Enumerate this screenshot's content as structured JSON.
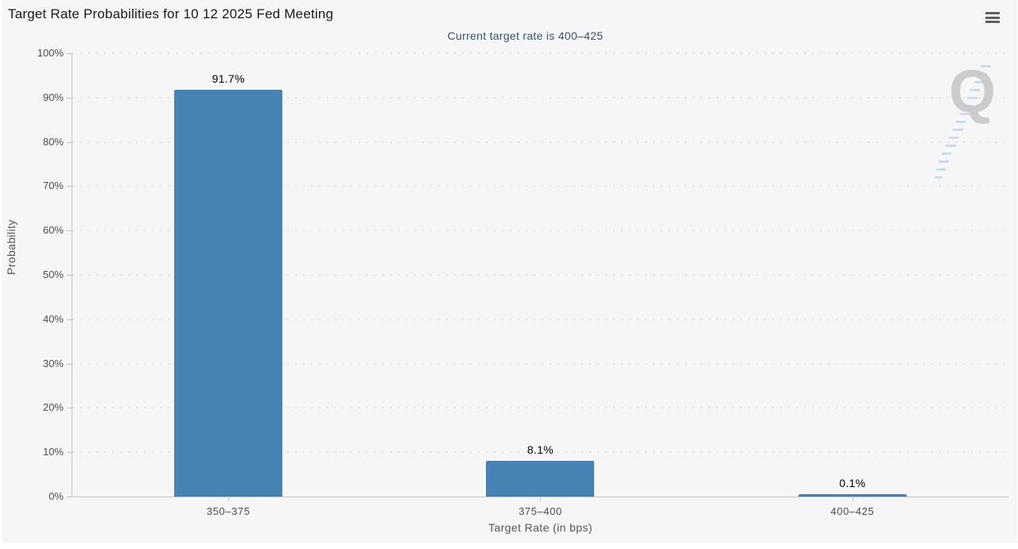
{
  "chart_data": {
    "type": "bar",
    "title": "Target Rate Probabilities for 10 12 2025 Fed Meeting",
    "subtitle": "Current target rate is 400–425",
    "categories": [
      "350–375",
      "375–400",
      "400–425"
    ],
    "values": [
      91.7,
      8.1,
      0.1
    ],
    "bar_labels": [
      "91.7%",
      "8.1%",
      "0.1%"
    ],
    "xlabel": "Target Rate (in bps)",
    "ylabel": "Probability",
    "ylim": [
      0,
      100
    ],
    "yticks": [
      0,
      10,
      20,
      30,
      40,
      50,
      60,
      70,
      80,
      90,
      100
    ],
    "ytick_labels": [
      "0%",
      "10%",
      "20%",
      "30%",
      "40%",
      "50%",
      "60%",
      "70%",
      "80%",
      "90%",
      "100%"
    ],
    "grid": "horizontal-dotted",
    "legend": "none",
    "bar_color": "#4682B4"
  },
  "toolbar": {
    "menu_icon": "hamburger-menu-icon"
  },
  "watermark": {
    "letter": "Q"
  },
  "colors": {
    "chart_background": "#F6F6F6",
    "page_background": "#FFFFFF",
    "title_text": "#1A1A1A",
    "subtitle_text": "#33517E",
    "axis_line": "#C3C3C3",
    "grid_dot": "#E2E2E2",
    "tick_label": "#4D4D4D",
    "axis_title": "#555555",
    "bar": "#4682B4",
    "value_label": "#000000",
    "menu_icon": "#616161",
    "watermark_q": "#C5C5C5",
    "watermark_dash": "#B9D3E8"
  }
}
